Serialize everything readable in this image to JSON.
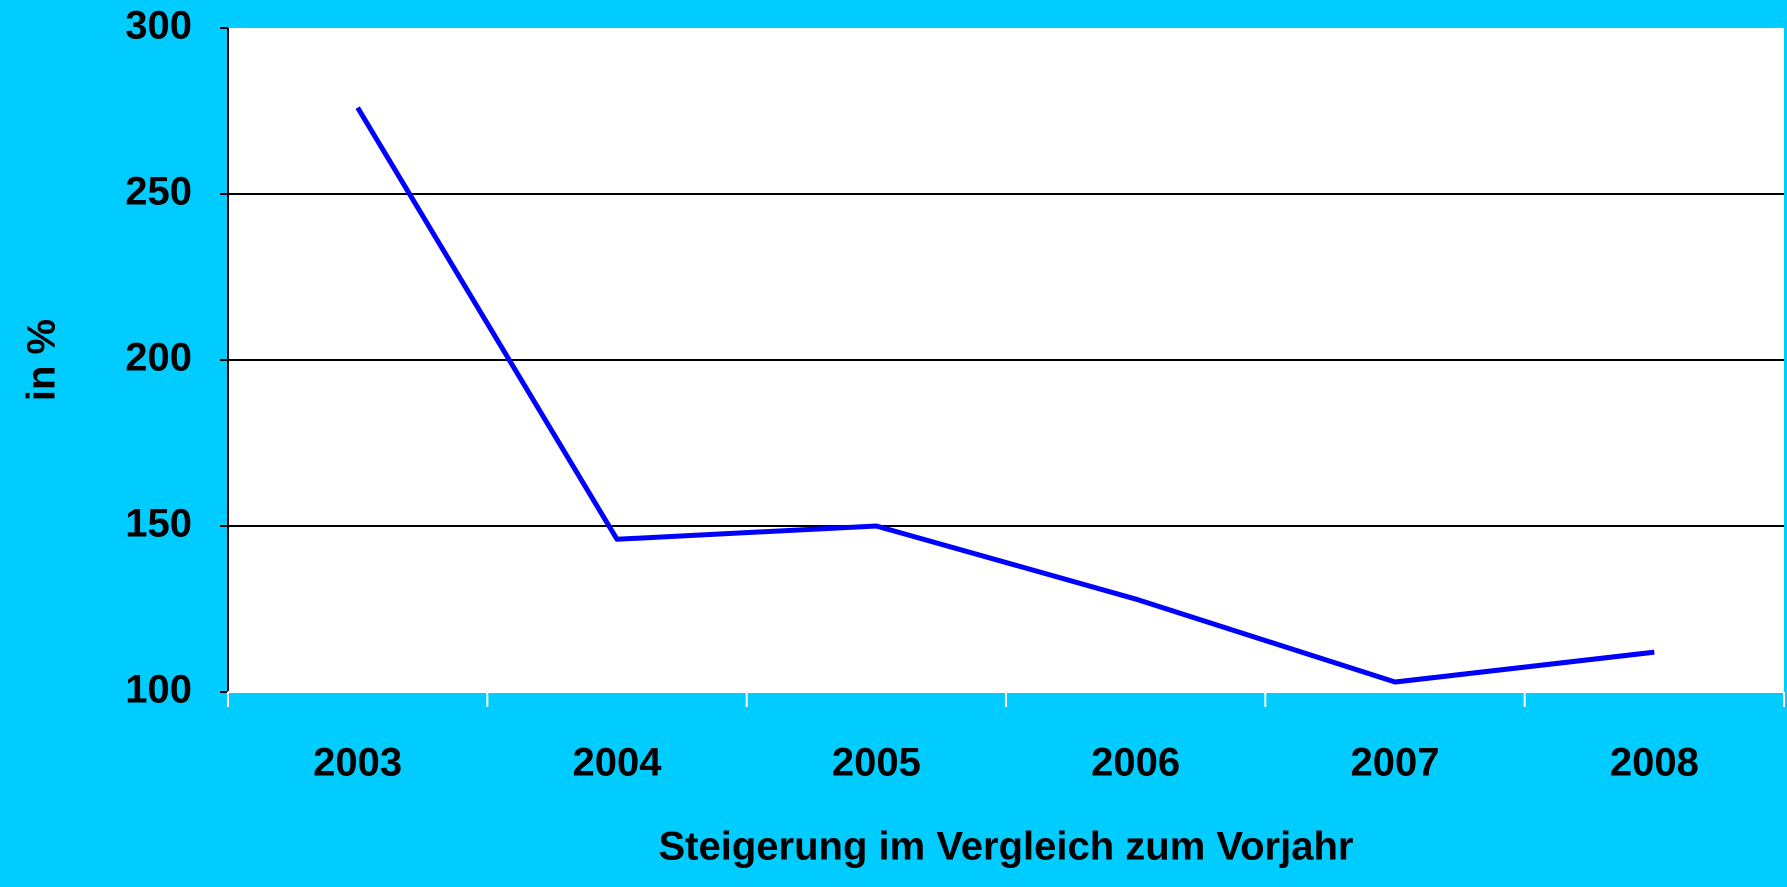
{
  "chart_data": {
    "type": "line",
    "x_label": "Steigerung im Vergleich zum Vorjahr",
    "y_label": "in %",
    "categories": [
      "2003",
      "2004",
      "2005",
      "2006",
      "2007",
      "2008"
    ],
    "series": [
      {
        "name": "Steigerung",
        "color": "#0000ff",
        "values": [
          276,
          146,
          150,
          128,
          103,
          112
        ]
      }
    ],
    "ylim": [
      100,
      300
    ],
    "yticks": [
      100,
      150,
      200,
      250,
      300
    ],
    "grid": true
  }
}
